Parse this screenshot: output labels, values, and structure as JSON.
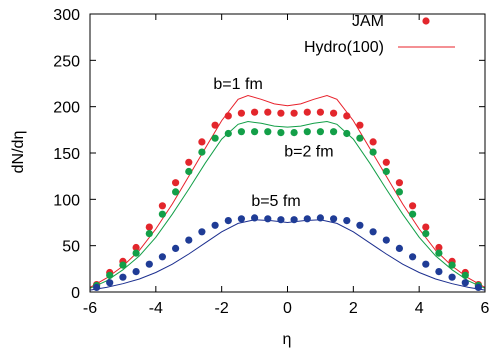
{
  "chart_data": {
    "type": "scatter",
    "xlabel": "η",
    "ylabel": "dN/dη",
    "xlim": [
      -6,
      6
    ],
    "ylim": [
      0,
      300
    ],
    "xticks": [
      -6,
      -4,
      -2,
      0,
      2,
      4,
      6
    ],
    "yticks": [
      0,
      50,
      100,
      150,
      200,
      250,
      300
    ],
    "grid": false,
    "legend": {
      "position": "top-right",
      "entries": [
        {
          "label": "JAM",
          "marker": "dot",
          "color": "#e8202a"
        },
        {
          "label": "Hydro(100)",
          "marker": "line",
          "color": "#e8202a"
        }
      ]
    },
    "annotations": [
      {
        "text": "b=1 fm",
        "x": -1.5,
        "y": 219
      },
      {
        "text": "b=2 fm",
        "x": 0.65,
        "y": 146
      },
      {
        "text": "b=5 fm",
        "x": -0.35,
        "y": 93
      }
    ],
    "points_x": [
      -5.8,
      -5.4,
      -5.0,
      -4.6,
      -4.2,
      -3.8,
      -3.4,
      -3.0,
      -2.6,
      -2.2,
      -1.8,
      -1.4,
      -1.0,
      -0.6,
      -0.2,
      0.2,
      0.6,
      1.0,
      1.4,
      1.8,
      2.2,
      2.6,
      3.0,
      3.4,
      3.8,
      4.2,
      4.6,
      5.0,
      5.4,
      5.8
    ],
    "series": [
      {
        "name": "JAM",
        "label": "b=1 fm",
        "kind": "points",
        "color": "#e3262c",
        "values": [
          8,
          21,
          33,
          48,
          70,
          93,
          118,
          140,
          162,
          180,
          190,
          193,
          194,
          194,
          193,
          193,
          194,
          194,
          193,
          190,
          180,
          162,
          140,
          118,
          93,
          70,
          48,
          33,
          21,
          8
        ]
      },
      {
        "name": "JAM",
        "label": "b=2 fm",
        "kind": "points",
        "color": "#139f48",
        "values": [
          7,
          18,
          29,
          42,
          63,
          84,
          108,
          130,
          151,
          166,
          171,
          173,
          173,
          173,
          172,
          172,
          173,
          173,
          173,
          171,
          166,
          151,
          130,
          108,
          84,
          63,
          42,
          29,
          18,
          7
        ]
      },
      {
        "name": "JAM",
        "label": "b=5 fm",
        "kind": "points",
        "color": "#1f3c96",
        "values": [
          5,
          10,
          16,
          22,
          30,
          38,
          47,
          56,
          65,
          72,
          77,
          79,
          80,
          79,
          78,
          78,
          79,
          80,
          79,
          77,
          72,
          65,
          56,
          47,
          38,
          30,
          22,
          16,
          10,
          5
        ]
      },
      {
        "name": "Hydro(100)",
        "label": "b=1 fm",
        "kind": "line",
        "color": "#e8202a",
        "x": [
          -6,
          -5.5,
          -5,
          -4.5,
          -4,
          -3.5,
          -3,
          -2.5,
          -2,
          -1.5,
          -1.2,
          -0.8,
          -0.4,
          0,
          0.4,
          0.8,
          1.2,
          1.5,
          2,
          2.5,
          3,
          3.5,
          4,
          4.5,
          5,
          5.5,
          6
        ],
        "values": [
          5,
          15,
          28,
          45,
          68,
          95,
          125,
          155,
          185,
          208,
          212,
          208,
          203,
          201,
          203,
          208,
          212,
          208,
          185,
          155,
          125,
          95,
          68,
          45,
          28,
          15,
          5
        ]
      },
      {
        "name": "Hydro(100)",
        "label": "b=2 fm",
        "kind": "line",
        "color": "#139f48",
        "x": [
          -6,
          -5.5,
          -5,
          -4.5,
          -4,
          -3.5,
          -3,
          -2.5,
          -2,
          -1.5,
          -1.2,
          -0.8,
          -0.4,
          0,
          0.4,
          0.8,
          1.2,
          1.5,
          2,
          2.5,
          3,
          3.5,
          4,
          4.5,
          5,
          5.5,
          6
        ],
        "values": [
          4,
          12,
          24,
          39,
          59,
          84,
          111,
          139,
          165,
          181,
          184,
          182,
          179,
          178,
          179,
          182,
          184,
          181,
          165,
          139,
          111,
          84,
          59,
          39,
          24,
          12,
          4
        ]
      },
      {
        "name": "Hydro(100)",
        "label": "b=5 fm",
        "kind": "line",
        "color": "#1c2f8f",
        "x": [
          -6,
          -5.5,
          -5,
          -4.5,
          -4,
          -3.5,
          -3,
          -2.5,
          -2,
          -1.5,
          -1,
          -0.5,
          0,
          0.5,
          1,
          1.5,
          2,
          2.5,
          3,
          3.5,
          4,
          4.5,
          5,
          5.5,
          6
        ],
        "values": [
          2,
          5,
          9,
          14,
          21,
          30,
          41,
          53,
          65,
          74,
          78,
          77,
          75,
          77,
          78,
          74,
          65,
          53,
          41,
          30,
          21,
          14,
          9,
          5,
          2
        ]
      }
    ]
  }
}
